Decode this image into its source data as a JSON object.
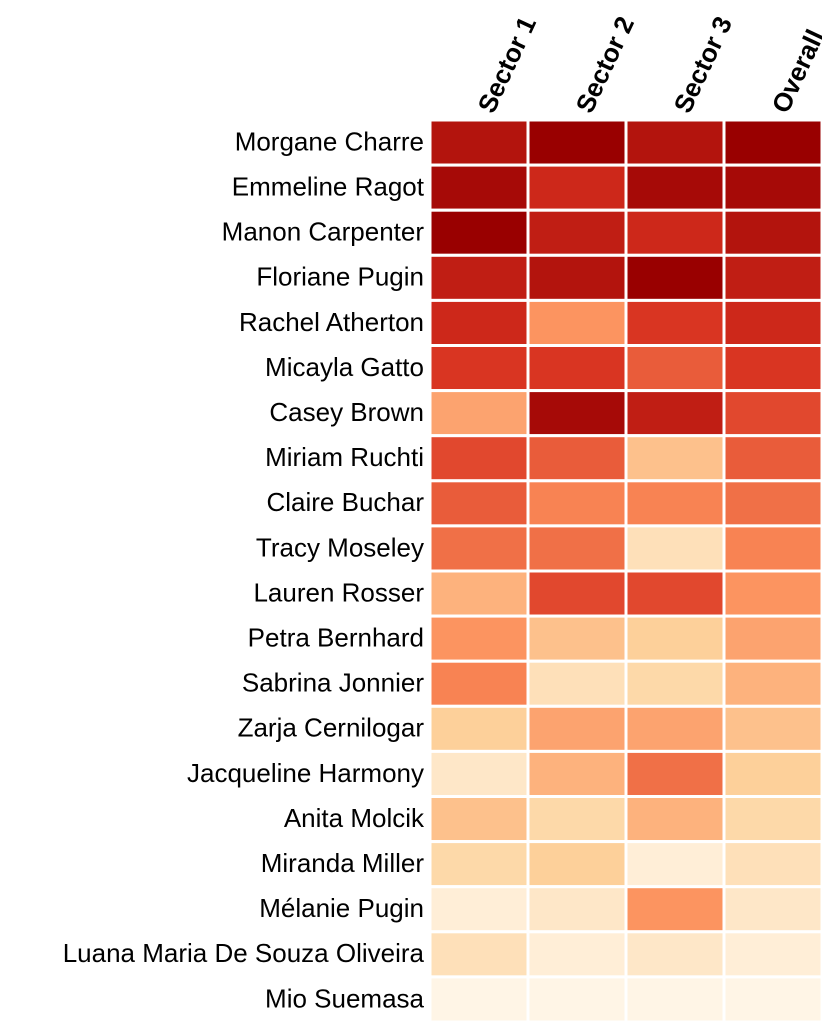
{
  "chart_data": {
    "type": "heatmap",
    "categories": [
      "Morgane Charre",
      "Emmeline Ragot",
      "Manon Carpenter",
      "Floriane Pugin",
      "Rachel Atherton",
      "Micayla Gatto",
      "Casey Brown",
      "Miriam Ruchti",
      "Claire Buchar",
      "Tracy Moseley",
      "Lauren Rosser",
      "Petra Bernhard",
      "Sabrina Jonnier",
      "Zarja Cernilogar",
      "Jacqueline Harmony",
      "Anita Molcik",
      "Miranda Miller",
      "Mélanie Pugin",
      "Luana Maria De Souza Oliveira",
      "Mio Suemasa"
    ],
    "series": [
      {
        "name": "Sector 1",
        "values": [
          3,
          2,
          1,
          4,
          5,
          6,
          12,
          7,
          8,
          9,
          13,
          11,
          10,
          15,
          18,
          14,
          16,
          19,
          17,
          20
        ]
      },
      {
        "name": "Sector 2",
        "values": [
          1,
          5,
          4,
          3,
          11,
          6,
          2,
          8,
          10,
          9,
          7,
          14,
          17,
          12,
          13,
          16,
          15,
          18,
          19,
          20
        ]
      },
      {
        "name": "Sector 3",
        "values": [
          3,
          2,
          5,
          1,
          6,
          8,
          4,
          14,
          10,
          17,
          7,
          15,
          16,
          12,
          9,
          13,
          19,
          11,
          18,
          20
        ]
      },
      {
        "name": "Overall",
        "values": [
          1,
          2,
          3,
          4,
          5,
          6,
          7,
          8,
          9,
          10,
          11,
          12,
          13,
          14,
          15,
          16,
          17,
          18,
          19,
          20
        ]
      }
    ],
    "zlim": [
      1,
      20
    ],
    "colors": [
      "#990000",
      "#d7301f",
      "#fc8d59",
      "#fdd49e",
      "#fff5e6"
    ]
  }
}
